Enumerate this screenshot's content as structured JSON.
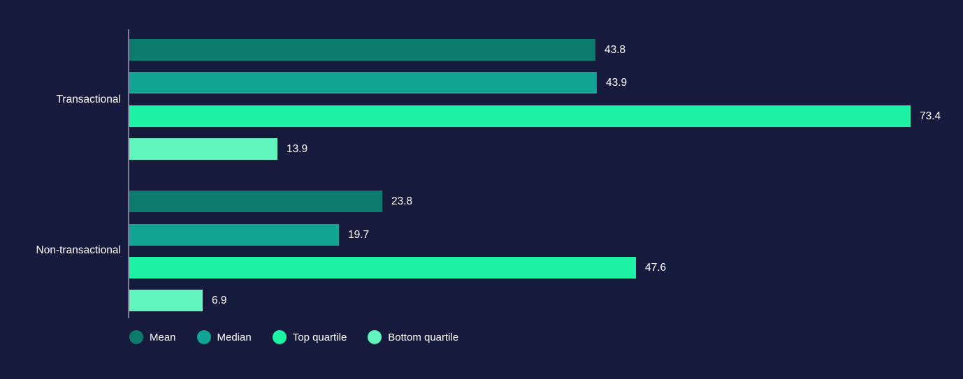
{
  "chart_data": {
    "type": "bar",
    "orientation": "horizontal",
    "title": "",
    "categories": [
      "Transactional",
      "Non-transactional"
    ],
    "series": [
      {
        "name": "Mean",
        "color": "#0C7B6C",
        "values": [
          43.8,
          23.8
        ]
      },
      {
        "name": "Median",
        "color": "#12A594",
        "values": [
          43.9,
          19.7
        ]
      },
      {
        "name": "Top quartile",
        "color": "#1EF2A4",
        "values": [
          73.4,
          47.6
        ]
      },
      {
        "name": "Bottom quartile",
        "color": "#61F4BD",
        "values": [
          13.9,
          6.9
        ]
      }
    ],
    "value_labels": {
      "Transactional": [
        "43.8",
        "43.9",
        "73.4",
        "13.9"
      ],
      "Non-transactional": [
        "23.8",
        "19.7",
        "47.6",
        "6.9"
      ]
    },
    "xlim": [
      0,
      78
    ],
    "grid": false,
    "axis_ticks": "none",
    "legend_position": "bottom",
    "legend_entries": [
      "Mean",
      "Median",
      "Top quartile",
      "Bottom quartile"
    ]
  },
  "theme": {
    "background": "#161A3C",
    "axis_line_color": "#7A7F97",
    "text_color": "#FFFFFF"
  }
}
